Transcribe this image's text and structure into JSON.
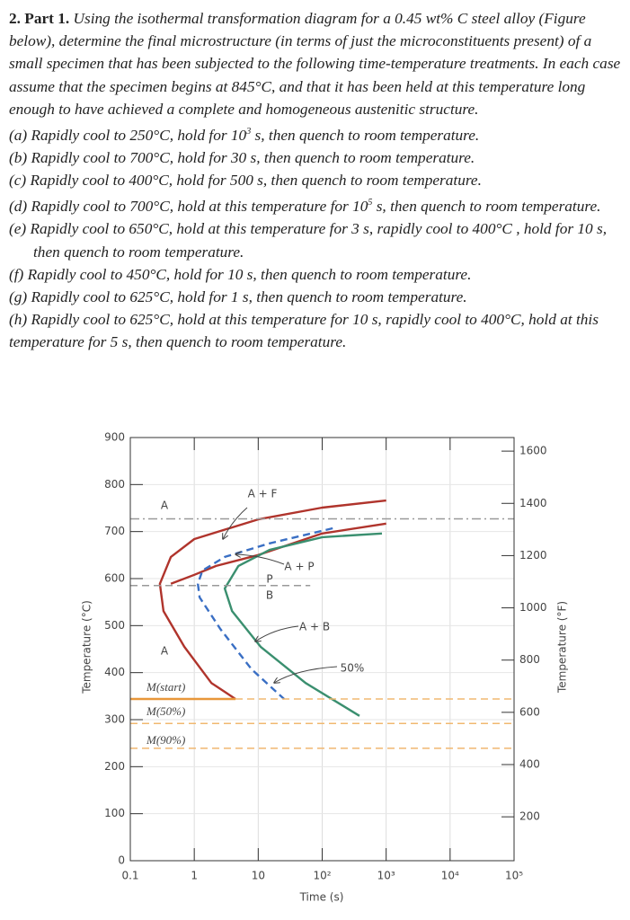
{
  "problem": {
    "heading": "2. Part 1.",
    "intro": "Using the isothermal transformation diagram for a 0.45 wt% C steel alloy (Figure below), determine the final microstructure (in terms of just the microconstituents present) of a small specimen that has been subjected to the following time-temperature treatments. In each case assume that the specimen begins at 845°C, and that it has been held at this temperature long enough to have achieved a complete and homogeneous austenitic structure.",
    "items": [
      [
        "(a) Rapidly cool to 250°C, hold for 10",
        "3",
        " s, then quench to room temperature."
      ],
      [
        "(b) Rapidly cool to 700°C, hold for 30 s, then quench to room temperature."
      ],
      [
        "(c) Rapidly cool to 400°C, hold for 500 s, then quench to room temperature."
      ],
      [
        "(d) Rapidly cool to 700°C, hold at this temperature for 10",
        "5",
        " s, then quench to room temperature."
      ],
      [
        "(e) Rapidly cool to 650°C, hold at this temperature for 3 s, rapidly cool to 400°C , hold for 10 s, then quench to room temperature."
      ],
      [
        "(f) Rapidly cool to 450°C, hold for 10 s, then quench to room temperature."
      ],
      [
        "(g) Rapidly cool to 625°C, hold for 1 s, then quench to room temperature."
      ],
      [
        "(h) Rapidly cool to 625°C, hold at this temperature for 10 s, rapidly cool to 400°C, hold at this temperature for 5 s, then quench to room temperature."
      ]
    ]
  },
  "chart_data": {
    "type": "line",
    "xlabel": "Time (s)",
    "ylabel": "Temperature (°C)",
    "y2label": "Temperature (°F)",
    "xscale": "log",
    "xlim": [
      0.1,
      100000
    ],
    "xticks": [
      0.1,
      1,
      10,
      {
        "value": 100,
        "label": "10²"
      },
      {
        "value": 1000,
        "label": "10³"
      },
      {
        "value": 10000,
        "label": "10⁴"
      },
      {
        "value": 100000,
        "label": "10⁵"
      }
    ],
    "ylim": [
      0,
      900
    ],
    "yticks": [
      0,
      100,
      200,
      300,
      400,
      500,
      600,
      700,
      800,
      900
    ],
    "y2lim": [
      32,
      1652
    ],
    "y2ticks": [
      200,
      400,
      600,
      800,
      1000,
      1200,
      1400,
      1600
    ],
    "grid": true,
    "series": [
      {
        "color": "#b0342c",
        "dash": "solid",
        "x": [
          1000,
          100,
          10,
          1,
          0.43,
          0.29,
          0.33,
          0.7,
          1.85,
          4.4
        ],
        "values": [
          766,
          751,
          726,
          684,
          646,
          589,
          531,
          455,
          378,
          344
        ]
      },
      {
        "color": "#b0342c",
        "dash": "solid",
        "x": [
          1000,
          100,
          10,
          2.2,
          1,
          0.43
        ],
        "values": [
          717,
          696,
          650,
          627,
          608,
          589
        ]
      },
      {
        "color": "#3a6fc4",
        "dash": "dashed",
        "x": [
          146,
          15,
          3,
          1.34,
          1.14,
          1.21,
          2.55,
          7.9,
          25.4
        ],
        "values": [
          707,
          675,
          646,
          617,
          589,
          560,
          493,
          407,
          344
        ]
      },
      {
        "color": "#3a8f6f",
        "dash": "solid",
        "x": [
          861,
          100,
          15,
          4.9,
          3,
          3.9,
          10.9,
          55,
          383
        ],
        "values": [
          696,
          688,
          661,
          627,
          579,
          531,
          455,
          378,
          308
        ]
      },
      {
        "color": "#999999",
        "dash": "dashdot",
        "x": [
          0.1,
          100000
        ],
        "values": [
          727,
          727
        ]
      },
      {
        "color": "#999999",
        "dash": "dashed",
        "x": [
          0.1,
          65
        ],
        "values": [
          585,
          585
        ]
      },
      {
        "color": "#e8973a",
        "dash": "solid",
        "x": [
          0.1,
          4.4
        ],
        "values": [
          344,
          344
        ]
      },
      {
        "color": "#f0b870",
        "dash": "dashed",
        "x": [
          4.4,
          100000
        ],
        "values": [
          344,
          344
        ]
      },
      {
        "color": "#f0b870",
        "dash": "dashed",
        "x": [
          0.1,
          100000
        ],
        "values": [
          292,
          292
        ]
      },
      {
        "color": "#f0b870",
        "dash": "dashed",
        "x": [
          0.1,
          100000
        ],
        "values": [
          239,
          239
        ]
      }
    ],
    "annotations": [
      "A + F",
      "A",
      "A + P",
      "P",
      "B",
      "A + B",
      "A",
      "50%",
      "M(start)",
      "M(50%)",
      "M(90%)"
    ]
  }
}
